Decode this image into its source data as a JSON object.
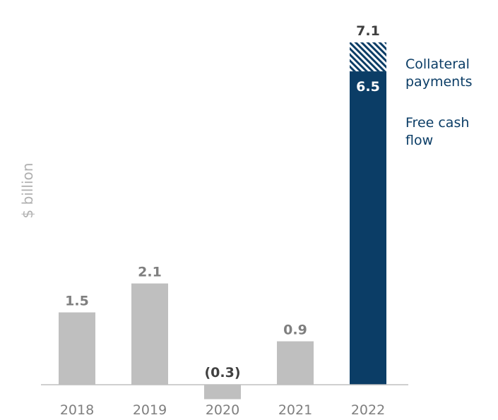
{
  "chart_data": {
    "type": "bar",
    "ylabel": "$ billion",
    "categories": [
      "2018",
      "2019",
      "2020",
      "2021",
      "2022"
    ],
    "series": [
      {
        "name": "Free cash flow",
        "values": [
          1.5,
          2.1,
          -0.3,
          0.9,
          6.5
        ],
        "labels": [
          "1.5",
          "2.1",
          "(0.3)",
          "0.9",
          "6.5"
        ]
      },
      {
        "name": "Collateral payments",
        "values": [
          0,
          0,
          0,
          0,
          0.6
        ]
      }
    ],
    "total_labels": [
      {
        "category": "2022",
        "value": 7.1,
        "label": "7.1"
      }
    ],
    "legend": {
      "placement": "right",
      "items": [
        {
          "name": "Collateral payments",
          "lines": [
            "Collateral",
            "payments"
          ],
          "style": "hatched"
        },
        {
          "name": "Free cash flow",
          "lines": [
            "Free cash",
            "flow"
          ],
          "style": "solid"
        }
      ]
    },
    "ylim": [
      -0.3,
      7.1
    ],
    "grid": false,
    "colors": {
      "historical": "#bfbfbf",
      "highlight": "#0b3d66",
      "hatch": "#0b3d66",
      "axis": "#bfbfbf",
      "tick_text": "#7f7f7f"
    }
  }
}
